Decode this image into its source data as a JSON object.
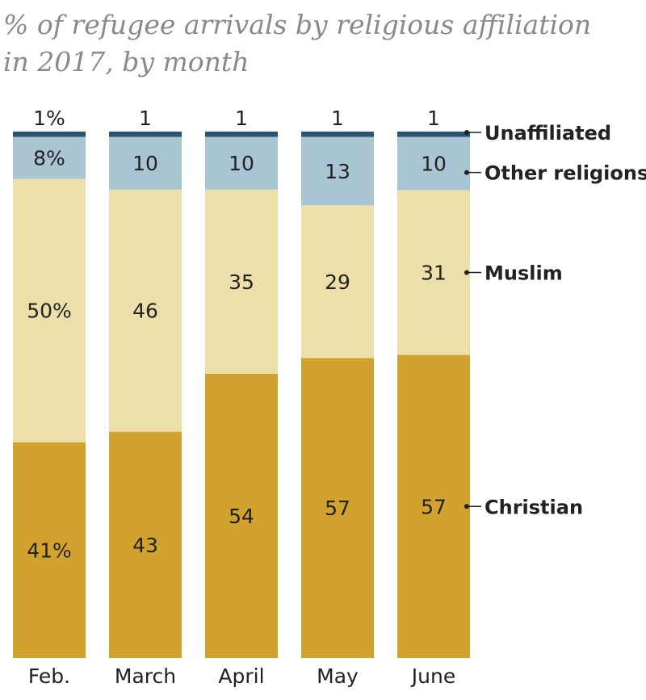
{
  "chart_data": {
    "type": "bar",
    "stacked": true,
    "title": "% of refugee arrivals by religious affiliation",
    "subtitle": "in 2017, by month",
    "categories": [
      "Feb.",
      "March",
      "April",
      "May",
      "June"
    ],
    "series": [
      {
        "name": "Christian",
        "values": [
          41,
          43,
          54,
          57,
          57
        ],
        "labels": [
          "41%",
          "43",
          "54",
          "57",
          "57"
        ],
        "color": "#d1a32e"
      },
      {
        "name": "Muslim",
        "values": [
          50,
          46,
          35,
          29,
          31
        ],
        "labels": [
          "50%",
          "46",
          "35",
          "29",
          "31"
        ],
        "color": "#ecdfaa"
      },
      {
        "name": "Other religions",
        "values": [
          8,
          10,
          10,
          13,
          10
        ],
        "labels": [
          "8%",
          "10",
          "10",
          "13",
          "10"
        ],
        "color": "#a9c4d3"
      },
      {
        "name": "Unaffiliated",
        "values": [
          1,
          1,
          1,
          1,
          1
        ],
        "labels": [
          "1%",
          "1",
          "1",
          "1",
          "1"
        ],
        "color": "#2a5473"
      }
    ],
    "ylim": [
      0,
      100
    ],
    "legend_position": "right",
    "xlabel": "",
    "ylabel": ""
  }
}
